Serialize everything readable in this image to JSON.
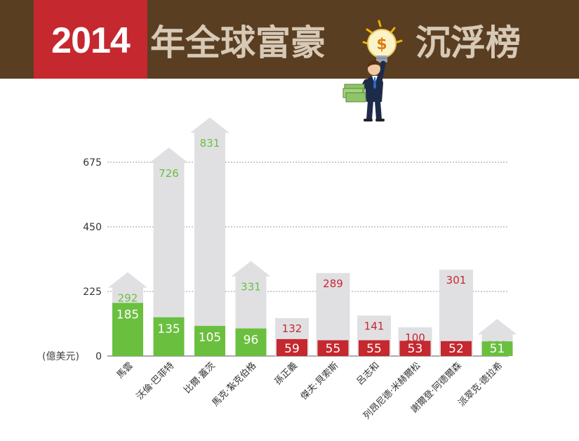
{
  "header": {
    "year": "2014",
    "title_left": "年全球富豪",
    "title_right": "沉浮榜"
  },
  "colors": {
    "header_bg": "#5a3e22",
    "year_bg": "#c5282e",
    "title_text": "#d6c9b6",
    "gain": "#6abf3f",
    "loss": "#c5282e",
    "other_bar": "#e0e0e3"
  },
  "chart_data": {
    "type": "bar",
    "title": "",
    "ylabel": "(億美元)",
    "ylim": [
      0,
      900
    ],
    "yticks": [
      0,
      225,
      450,
      675
    ],
    "grid": true,
    "categories": [
      "馬雲",
      "沃倫·巴菲特",
      "比爾·蓋茨",
      "馬克·紮克伯格",
      "孫正義",
      "傑夫·貝索斯",
      "呂志和",
      "列昂尼德·米赫爾松",
      "謝爾登·阿德爾森",
      "派翠克·德拉希"
    ],
    "series": [
      {
        "values": [
          292,
          726,
          831,
          331,
          132,
          289,
          141,
          100,
          301,
          129
        ]
      },
      {
        "values": [
          185,
          135,
          105,
          96,
          59,
          55,
          55,
          53,
          52,
          51
        ]
      }
    ],
    "direction": [
      "up",
      "up",
      "up",
      "up",
      "down",
      "down",
      "down",
      "down",
      "down",
      "up"
    ]
  }
}
